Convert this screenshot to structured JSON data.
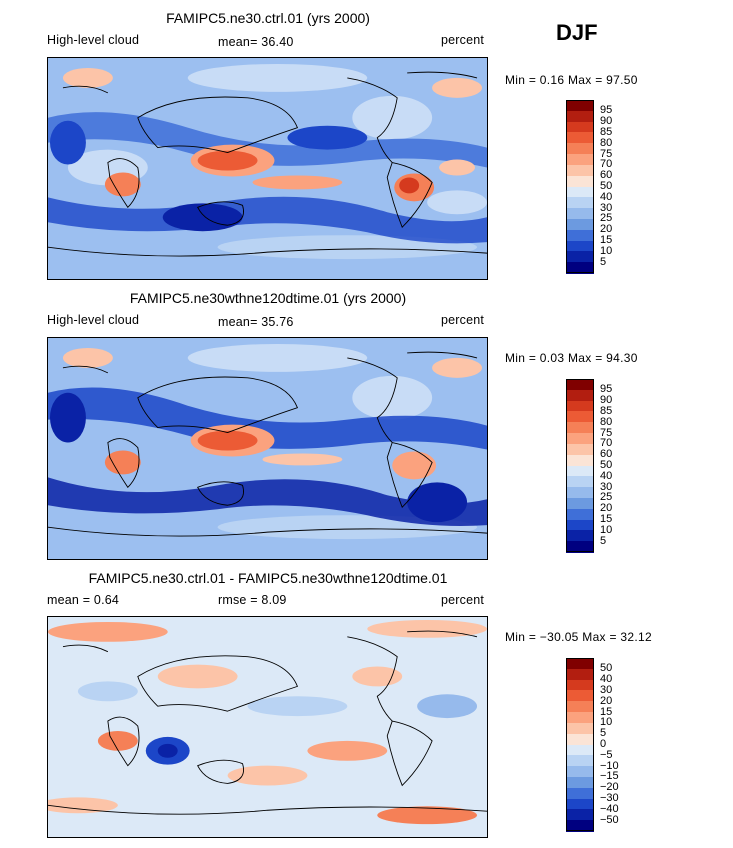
{
  "season": "DJF",
  "panels": [
    {
      "title": "FAMIPC5.ne30.ctrl.01 (yrs 2000)",
      "left_label": "High-level cloud",
      "center_label": "mean=  36.40",
      "right_label": "percent",
      "minmax": "Min =   0.16 Max =  97.50",
      "colorbar_labels": [
        "95",
        "90",
        "85",
        "80",
        "75",
        "70",
        "60",
        "50",
        "40",
        "30",
        "25",
        "20",
        "15",
        "10",
        "5"
      ]
    },
    {
      "title": "FAMIPC5.ne30wthne120dtime.01 (yrs 2000)",
      "left_label": "High-level cloud",
      "center_label": "mean=  35.76",
      "right_label": "percent",
      "minmax": "Min =   0.03 Max =  94.30",
      "colorbar_labels": [
        "95",
        "90",
        "85",
        "80",
        "75",
        "70",
        "60",
        "50",
        "40",
        "30",
        "25",
        "20",
        "15",
        "10",
        "5"
      ]
    },
    {
      "title": "FAMIPC5.ne30.ctrl.01 - FAMIPC5.ne30wthne120dtime.01",
      "left_label": "mean =   0.64",
      "center_label": "rmse =   8.09",
      "right_label": "percent",
      "minmax": "Min = −30.05 Max =  32.12",
      "colorbar_labels": [
        "50",
        "40",
        "30",
        "20",
        "15",
        "10",
        "5",
        "0",
        "−5",
        "−10",
        "−15",
        "−20",
        "−30",
        "−40",
        "−50"
      ]
    }
  ],
  "colors": {
    "palette": [
      "#800000",
      "#b21e10",
      "#d53a1e",
      "#ec5b35",
      "#f58057",
      "#fba27e",
      "#fcc4a8",
      "#fbe4d6",
      "#dce9f7",
      "#b9d3f3",
      "#96baec",
      "#6c9ae0",
      "#3f6fd8",
      "#1c46c8",
      "#0a22a6",
      "#000080"
    ],
    "map_background": "#9cbff0"
  }
}
